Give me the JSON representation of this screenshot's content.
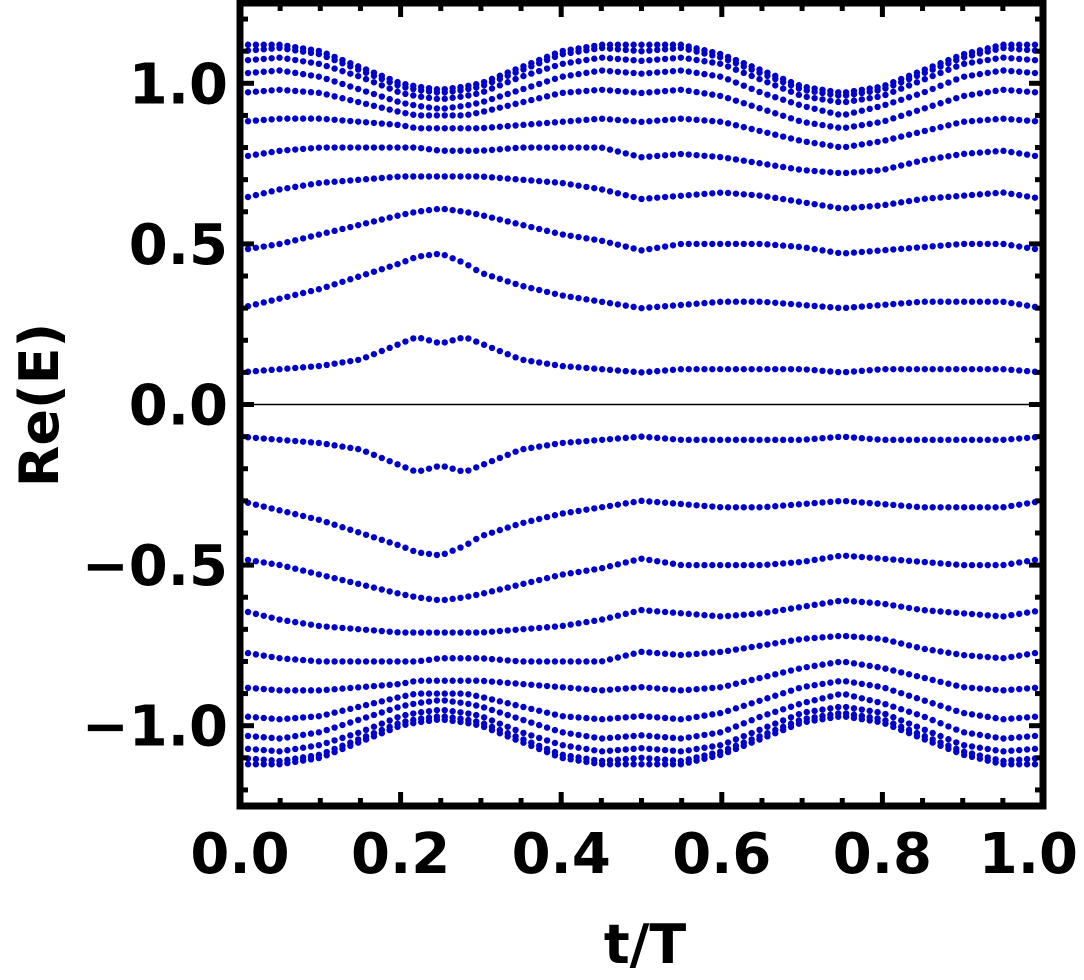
{
  "chart_data": {
    "type": "scatter",
    "title": "",
    "xlabel": "t/T",
    "ylabel": "Re(E)",
    "xlim": [
      0.0,
      1.0
    ],
    "ylim": [
      -1.25,
      1.25
    ],
    "x_ticks": [
      0.0,
      0.2,
      0.4,
      0.6,
      0.8,
      1.0
    ],
    "x_tick_labels": [
      "0.0",
      "0.2",
      "0.4",
      "0.6",
      "0.8",
      "1.0"
    ],
    "y_ticks": [
      -1.0,
      -0.5,
      0.0,
      0.5,
      1.0
    ],
    "y_tick_labels": [
      "−1.0",
      "−0.5",
      "0.0",
      "0.5",
      "1.0"
    ],
    "grid": false,
    "legend": "none",
    "marker_color": "#0000cc",
    "zero_line": true,
    "symmetric_about_zero": true,
    "x": [
      0.0,
      0.05,
      0.1,
      0.15,
      0.2,
      0.22,
      0.25,
      0.28,
      0.3,
      0.35,
      0.4,
      0.45,
      0.5,
      0.55,
      0.6,
      0.65,
      0.7,
      0.75,
      0.8,
      0.85,
      0.9,
      0.95,
      1.0
    ],
    "series": [
      {
        "values": [
          0.1,
          0.11,
          0.12,
          0.14,
          0.19,
          0.21,
          0.19,
          0.21,
          0.19,
          0.14,
          0.12,
          0.11,
          0.1,
          0.11,
          0.11,
          0.11,
          0.11,
          0.1,
          0.11,
          0.11,
          0.11,
          0.11,
          0.1
        ]
      },
      {
        "values": [
          0.3,
          0.33,
          0.36,
          0.4,
          0.44,
          0.46,
          0.47,
          0.44,
          0.41,
          0.37,
          0.34,
          0.32,
          0.3,
          0.31,
          0.32,
          0.32,
          0.31,
          0.3,
          0.31,
          0.32,
          0.32,
          0.32,
          0.3
        ]
      },
      {
        "values": [
          0.48,
          0.5,
          0.53,
          0.56,
          0.59,
          0.6,
          0.61,
          0.6,
          0.59,
          0.56,
          0.53,
          0.51,
          0.48,
          0.5,
          0.5,
          0.5,
          0.49,
          0.47,
          0.48,
          0.49,
          0.5,
          0.5,
          0.48
        ]
      },
      {
        "values": [
          0.64,
          0.67,
          0.69,
          0.7,
          0.71,
          0.71,
          0.71,
          0.71,
          0.71,
          0.7,
          0.69,
          0.67,
          0.64,
          0.65,
          0.66,
          0.65,
          0.63,
          0.61,
          0.62,
          0.64,
          0.65,
          0.66,
          0.64
        ]
      },
      {
        "values": [
          0.77,
          0.79,
          0.8,
          0.8,
          0.8,
          0.8,
          0.79,
          0.79,
          0.79,
          0.8,
          0.8,
          0.8,
          0.77,
          0.78,
          0.77,
          0.75,
          0.73,
          0.72,
          0.73,
          0.76,
          0.78,
          0.79,
          0.77
        ]
      },
      {
        "values": [
          0.88,
          0.89,
          0.89,
          0.88,
          0.87,
          0.86,
          0.86,
          0.86,
          0.86,
          0.87,
          0.88,
          0.89,
          0.88,
          0.89,
          0.88,
          0.85,
          0.82,
          0.8,
          0.82,
          0.85,
          0.88,
          0.89,
          0.88
        ]
      },
      {
        "values": [
          0.97,
          0.98,
          0.97,
          0.94,
          0.91,
          0.9,
          0.9,
          0.9,
          0.91,
          0.94,
          0.97,
          0.98,
          0.97,
          0.98,
          0.96,
          0.92,
          0.88,
          0.86,
          0.88,
          0.92,
          0.96,
          0.98,
          0.97
        ]
      },
      {
        "values": [
          1.03,
          1.04,
          1.02,
          0.98,
          0.94,
          0.93,
          0.92,
          0.93,
          0.94,
          0.98,
          1.02,
          1.04,
          1.03,
          1.04,
          1.02,
          0.97,
          0.93,
          0.9,
          0.93,
          0.97,
          1.02,
          1.04,
          1.03
        ]
      },
      {
        "values": [
          1.07,
          1.08,
          1.06,
          1.02,
          0.97,
          0.96,
          0.95,
          0.96,
          0.97,
          1.02,
          1.06,
          1.08,
          1.07,
          1.08,
          1.06,
          1.01,
          0.96,
          0.94,
          0.96,
          1.01,
          1.06,
          1.08,
          1.07
        ]
      },
      {
        "values": [
          1.1,
          1.11,
          1.09,
          1.04,
          0.99,
          0.98,
          0.97,
          0.98,
          0.99,
          1.04,
          1.09,
          1.11,
          1.1,
          1.11,
          1.08,
          1.03,
          0.98,
          0.96,
          0.98,
          1.03,
          1.08,
          1.11,
          1.1
        ]
      },
      {
        "values": [
          1.12,
          1.12,
          1.1,
          1.05,
          1.0,
          0.99,
          0.98,
          0.99,
          1.0,
          1.05,
          1.1,
          1.12,
          1.12,
          1.12,
          1.09,
          1.04,
          0.99,
          0.97,
          0.99,
          1.04,
          1.09,
          1.12,
          1.12
        ]
      }
    ]
  }
}
